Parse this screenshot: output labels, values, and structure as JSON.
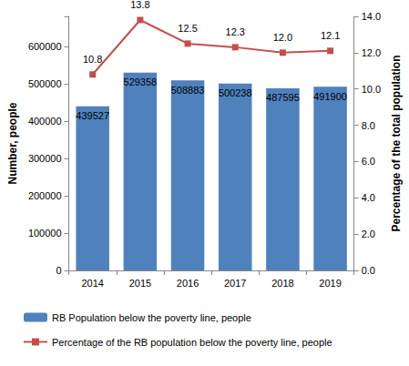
{
  "chart_data": {
    "type": "bar",
    "categories": [
      "2014",
      "2015",
      "2016",
      "2017",
      "2018",
      "2019"
    ],
    "y_label": "Number, people",
    "y2_label": "Percentage of the total population",
    "ylim": [
      0,
      680000
    ],
    "yticks": [
      0,
      100000,
      200000,
      300000,
      400000,
      500000,
      600000
    ],
    "y2lim": [
      0,
      14
    ],
    "y2ticks": [
      {
        "value": 0,
        "label": "0.0"
      },
      {
        "value": 2,
        "label": "2.0"
      },
      {
        "value": 4,
        "label": "4.0"
      },
      {
        "value": 6,
        "label": "6.0"
      },
      {
        "value": 8,
        "label": "8.0"
      },
      {
        "value": 10,
        "label": "10.0"
      },
      {
        "value": 12,
        "label": "12.0"
      },
      {
        "value": 14,
        "label": "14.0"
      }
    ],
    "grid": false,
    "legend": "bottom",
    "data_labels": true,
    "series": [
      {
        "name": "RB Population below the poverty line, people",
        "type": "bar",
        "color": "#4f81bd",
        "values": [
          439527,
          529358,
          508883,
          500238,
          487595,
          491900
        ]
      },
      {
        "name": "Percentage of the RB population below the poverty line, people",
        "type": "line",
        "axis": "y2",
        "color": "#c0504d",
        "marker": "square",
        "line_style": "solid",
        "values": [
          10.8,
          13.8,
          12.5,
          12.3,
          12.0,
          12.1
        ],
        "value_labels": [
          "10.8",
          "13.8",
          "12.5",
          "12.3",
          "12.0",
          "12.1"
        ]
      }
    ]
  }
}
